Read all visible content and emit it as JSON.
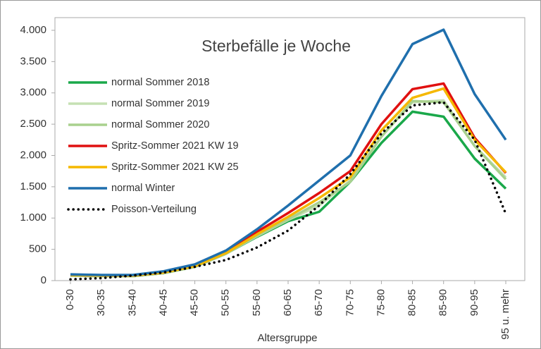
{
  "chart_data": {
    "type": "line",
    "title": "Sterbefälle je Woche",
    "x_label": "Altersgruppe",
    "categories": [
      "0-30",
      "30-35",
      "35-40",
      "40-45",
      "45-50",
      "50-55",
      "55-60",
      "60-65",
      "65-70",
      "70-75",
      "75-80",
      "80-85",
      "85-90",
      "90-95",
      "95 u. mehr"
    ],
    "series": [
      {
        "name": "normal Sommer 2018",
        "color": "#1aa84a",
        "style": "solid",
        "values": [
          80,
          70,
          70,
          120,
          220,
          430,
          700,
          950,
          1100,
          1580,
          2200,
          2700,
          2620,
          1950,
          1470
        ]
      },
      {
        "name": "normal Sommer 2019",
        "color": "#c5e0b4",
        "style": "solid",
        "values": [
          80,
          70,
          70,
          120,
          220,
          430,
          710,
          970,
          1200,
          1600,
          2300,
          2850,
          2880,
          2150,
          1650
        ]
      },
      {
        "name": "normal Sommer 2020",
        "color": "#a9d18e",
        "style": "solid",
        "values": [
          80,
          70,
          70,
          120,
          220,
          430,
          720,
          980,
          1250,
          1580,
          2300,
          2870,
          2850,
          2150,
          1620
        ]
      },
      {
        "name": "Spritz-Sommer 2021 KW 19",
        "color": "#e01010",
        "style": "solid",
        "values": [
          90,
          80,
          80,
          130,
          240,
          460,
          780,
          1080,
          1400,
          1750,
          2500,
          3060,
          3150,
          2280,
          1720
        ]
      },
      {
        "name": "Spritz-Sommer 2021 KW 25",
        "color": "#f5b800",
        "style": "solid",
        "values": [
          90,
          80,
          80,
          130,
          230,
          440,
          740,
          1020,
          1320,
          1650,
          2400,
          2920,
          3070,
          2250,
          1730
        ]
      },
      {
        "name": "normal Winter",
        "color": "#1f6fad",
        "style": "solid",
        "values": [
          100,
          90,
          90,
          150,
          260,
          480,
          820,
          1200,
          1600,
          2000,
          2950,
          3780,
          4010,
          2980,
          2250
        ]
      },
      {
        "name": "Poisson-Verteilung",
        "color": "#000000",
        "style": "dotted",
        "values": [
          20,
          40,
          80,
          130,
          220,
          330,
          530,
          800,
          1200,
          1700,
          2350,
          2800,
          2850,
          2250,
          1070
        ]
      }
    ],
    "ylim": [
      0,
      4000
    ],
    "yticks": [
      0,
      500,
      {
        "value": 1000,
        "label": "1.000"
      },
      {
        "value": 1500,
        "label": "1.500"
      },
      {
        "value": 2000,
        "label": "2.000"
      },
      {
        "value": 2500,
        "label": "2.500"
      },
      {
        "value": 3000,
        "label": "3.000"
      },
      {
        "value": 3500,
        "label": "3.500"
      },
      {
        "value": 4000,
        "label": "4.000"
      }
    ],
    "grid": false
  }
}
